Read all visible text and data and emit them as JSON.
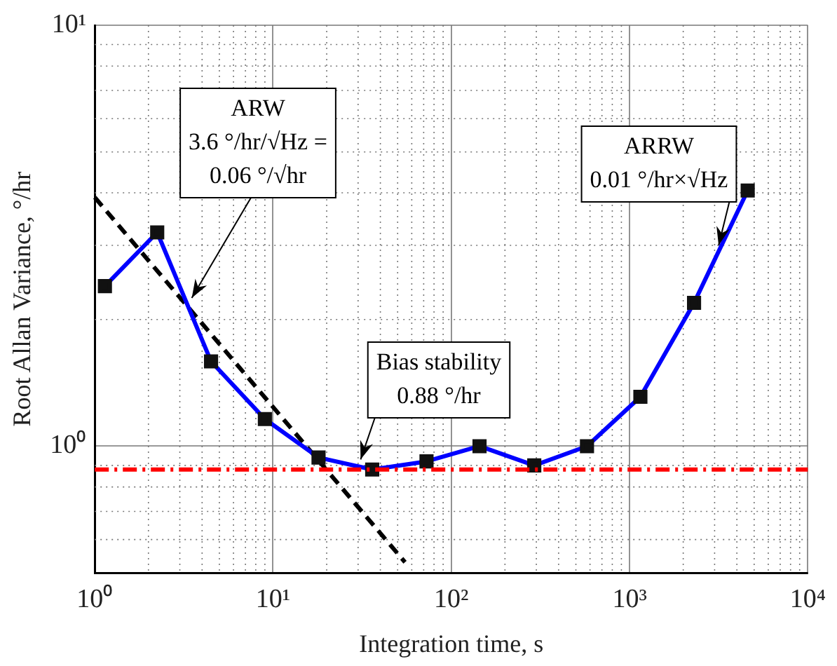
{
  "chart_data": {
    "type": "line",
    "xlabel": "Integration time, s",
    "ylabel": "Root Allan Variance, °/hr",
    "log": "xy",
    "xlim": [
      1,
      10000
    ],
    "ylim": [
      0.5,
      10
    ],
    "xticks": [
      {
        "value": 1,
        "label": "10⁰"
      },
      {
        "value": 10,
        "label": "10¹"
      },
      {
        "value": 100,
        "label": "10²"
      },
      {
        "value": 1000,
        "label": "10³"
      },
      {
        "value": 10000,
        "label": "10⁴"
      }
    ],
    "yticks": [
      {
        "value": 1,
        "label": "10⁰"
      },
      {
        "value": 10,
        "label": "10¹"
      }
    ],
    "grid": true,
    "marker": "square",
    "series": [
      {
        "color": "#0000ff",
        "x": [
          1.14,
          2.24,
          4.49,
          9.0,
          18,
          36,
          72.6,
          144,
          292,
          577,
          1150,
          2300,
          4600
        ],
        "values": [
          2.4,
          3.22,
          1.59,
          1.16,
          0.94,
          0.88,
          0.92,
          1.0,
          0.9,
          1.0,
          1.31,
          2.19,
          4.05
        ]
      },
      {
        "type": "line",
        "color": "#000000",
        "line_style": "dashed",
        "marker": "none",
        "x": [
          1,
          55
        ],
        "values": [
          3.9,
          0.53
        ]
      }
    ],
    "ref_lines": [
      {
        "axis": "y",
        "value": 0.88,
        "color": "#ff0000",
        "line_style": "dashed"
      }
    ],
    "annotations": [
      {
        "text": "ARW\n3.6 °/hr/√Hz =\n0.06 °/√hr",
        "x": 3.5,
        "y": 2.25
      },
      {
        "text": "Bias stability\n0.88 °/hr",
        "x": 31,
        "y": 0.93
      },
      {
        "text": "ARRW\n0.01 °/hr×√Hz",
        "x": 3160,
        "y": 3.0
      }
    ]
  }
}
